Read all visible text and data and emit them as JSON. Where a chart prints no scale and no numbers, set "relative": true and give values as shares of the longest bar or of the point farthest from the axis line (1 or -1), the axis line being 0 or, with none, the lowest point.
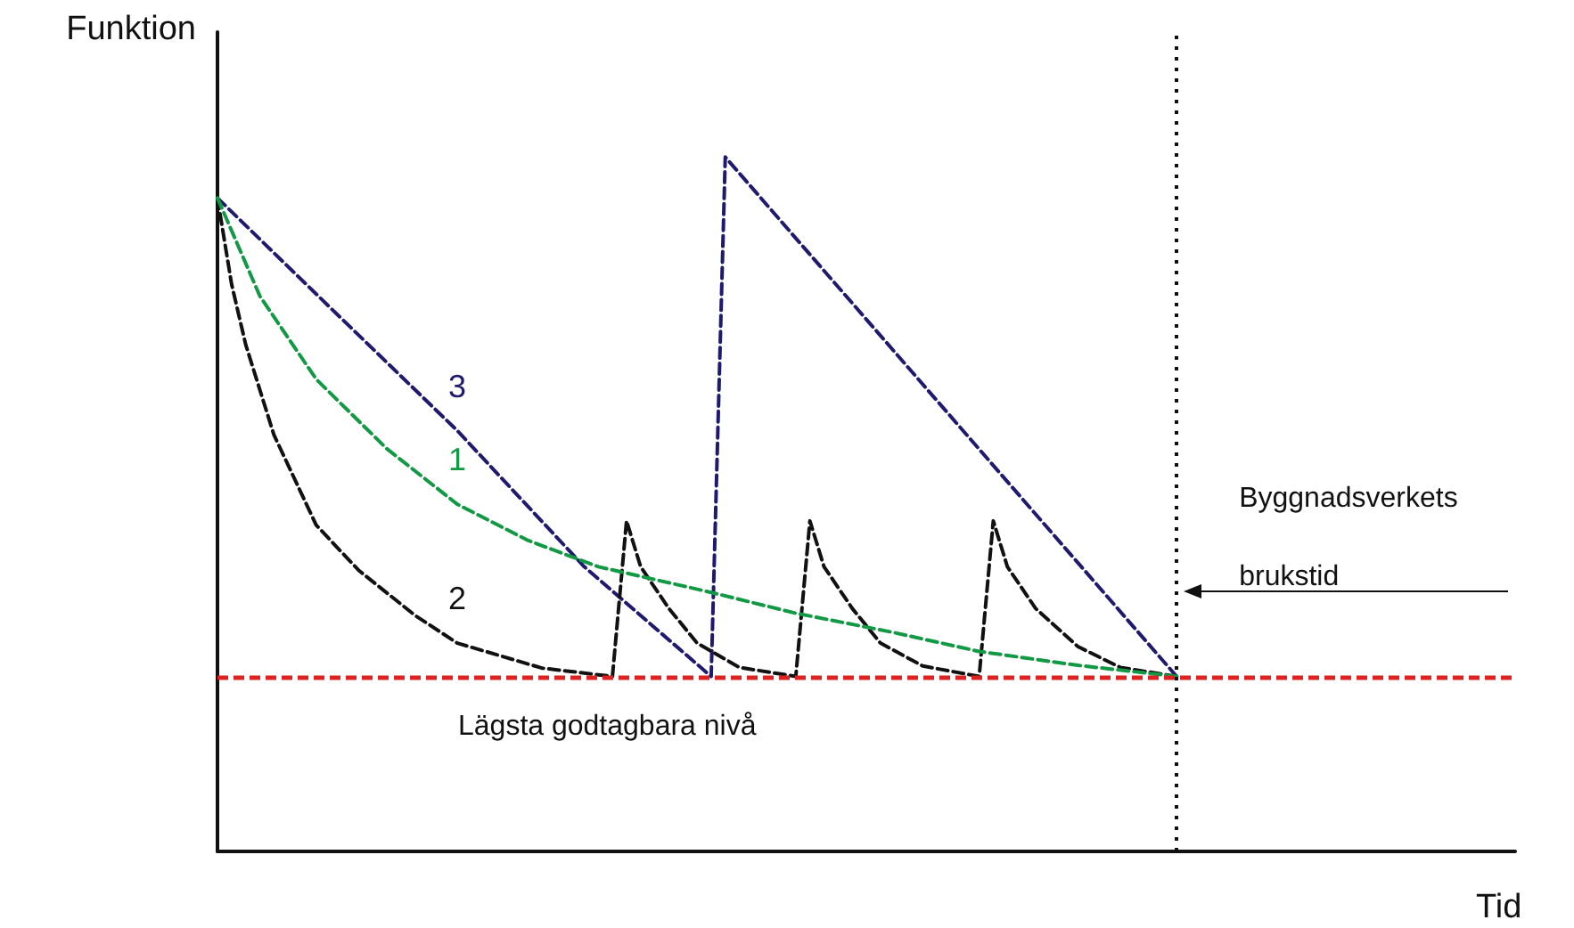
{
  "chart_data": {
    "type": "line",
    "relative": true,
    "xlabel": "Tid",
    "ylabel": "Funktion",
    "ylim": [
      0,
      1.18
    ],
    "legend": false,
    "grid": false,
    "marker": "none",
    "categories": [
      null,
      null,
      null,
      null,
      null,
      null,
      null,
      null,
      null,
      null,
      null,
      null,
      null,
      null,
      null,
      null,
      null,
      null,
      null,
      null,
      null,
      null,
      null,
      null,
      null,
      null,
      null,
      null,
      null,
      null,
      null,
      null,
      null,
      null,
      null,
      null,
      null,
      null,
      null,
      null,
      null,
      null,
      null,
      null,
      null,
      null,
      null,
      null,
      null,
      null,
      null,
      null,
      null,
      null,
      null,
      null,
      null,
      null,
      null,
      null,
      null,
      null,
      null,
      null,
      null,
      null,
      null,
      null,
      null,
      null,
      null,
      null,
      null,
      null,
      null,
      null,
      null,
      null,
      null,
      null,
      null,
      null,
      null,
      null,
      null,
      null,
      null,
      null,
      null,
      null,
      null,
      null,
      null
    ],
    "series": [
      {
        "name": "3",
        "color": "#1f1a6e",
        "line_style": "dashed",
        "values": [
          0.941,
          null,
          null,
          null,
          null,
          null,
          null,
          null,
          0.783,
          null,
          null,
          null,
          null,
          null,
          null,
          null,
          null,
          0.606,
          null,
          null,
          null,
          null,
          null,
          null,
          null,
          null,
          0.41,
          null,
          null,
          null,
          null,
          null,
          null,
          null,
          null,
          0.252,
          1,
          null,
          null,
          null,
          null,
          null,
          null,
          null,
          null,
          null,
          null,
          null,
          null,
          null,
          null,
          null,
          null,
          null,
          null,
          null,
          null,
          null,
          null,
          null,
          null,
          null,
          null,
          null,
          null,
          null,
          null,
          null,
          0.252,
          null,
          null,
          null,
          null,
          null,
          null,
          null,
          null,
          null,
          null,
          null,
          null,
          null,
          null,
          null,
          null,
          null,
          null,
          null,
          null,
          null,
          null,
          null,
          null
        ]
      },
      {
        "name": "2",
        "color": "#111111",
        "line_style": "dashed",
        "values": [
          0.941,
          0.817,
          0.73,
          null,
          0.6,
          null,
          null,
          0.47,
          null,
          null,
          0.405,
          null,
          null,
          null,
          0.34,
          null,
          null,
          0.3,
          null,
          null,
          null,
          null,
          null,
          0.264,
          null,
          null,
          null,
          null,
          0.252,
          0.476,
          0.41,
          null,
          0.35,
          null,
          0.3,
          null,
          null,
          0.265,
          null,
          null,
          null,
          0.252,
          0.476,
          0.41,
          null,
          0.35,
          null,
          0.3,
          null,
          null,
          0.267,
          null,
          null,
          null,
          0.252,
          0.476,
          0.41,
          null,
          0.35,
          null,
          null,
          0.295,
          null,
          null,
          0.265,
          null,
          null,
          null,
          0.252,
          null,
          null,
          null,
          null,
          null,
          null,
          null,
          null,
          null,
          null,
          null,
          null,
          null,
          null,
          null,
          null,
          null,
          null,
          null,
          null,
          null,
          null,
          null,
          null
        ]
      },
      {
        "name": "1",
        "color": "#119944",
        "line_style": "dashed",
        "values": [
          0.941,
          null,
          null,
          0.8,
          null,
          null,
          null,
          0.68,
          null,
          null,
          null,
          null,
          0.58,
          null,
          null,
          null,
          null,
          0.5,
          null,
          null,
          null,
          null,
          0.448,
          null,
          null,
          null,
          null,
          0.41,
          null,
          null,
          null,
          null,
          null,
          null,
          null,
          0.373,
          null,
          null,
          null,
          null,
          null,
          0.343,
          null,
          null,
          null,
          null,
          null,
          null,
          0.315,
          null,
          null,
          null,
          null,
          null,
          0.288,
          null,
          null,
          null,
          null,
          null,
          null,
          0.268,
          null,
          null,
          null,
          null,
          null,
          null,
          0.252,
          null,
          null,
          null,
          null,
          null,
          null,
          null,
          null,
          null,
          null,
          null,
          null,
          null,
          null,
          null,
          null,
          null,
          null,
          null,
          null,
          null,
          null,
          null,
          null
        ]
      }
    ],
    "ref_lines": [
      {
        "axis": "y",
        "value": 0.252,
        "label": "Lägsta godtagbara nivå",
        "color": "#dd2222",
        "line_style": "dashed"
      }
    ],
    "annotations": [
      "Byggnadsverkets brukstid"
    ]
  }
}
